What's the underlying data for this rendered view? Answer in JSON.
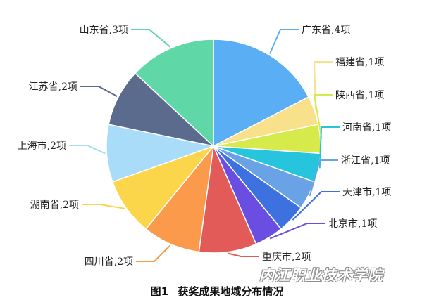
{
  "chart_data": {
    "type": "pie",
    "start_angle_deg": 90,
    "direction": "clockwise",
    "slices": [
      {
        "label": "广东省,4项",
        "value": 4,
        "color": "#5aaef3"
      },
      {
        "label": "福建省,1项",
        "value": 1,
        "color": "#f9e08a"
      },
      {
        "label": "陕西省,1项",
        "value": 1,
        "color": "#d7ea4b"
      },
      {
        "label": "河南省,1项",
        "value": 1,
        "color": "#26c4dd"
      },
      {
        "label": "浙江省,1项",
        "value": 1,
        "color": "#6aa2e6"
      },
      {
        "label": "天津市,1项",
        "value": 1,
        "color": "#3d71e0"
      },
      {
        "label": "北京市,1项",
        "value": 1,
        "color": "#6a4ee1"
      },
      {
        "label": "重庆市,2项",
        "value": 2,
        "color": "#e25b58"
      },
      {
        "label": "四川省,2项",
        "value": 2,
        "color": "#fb9a4b"
      },
      {
        "label": "湖南省,2项",
        "value": 2,
        "color": "#fbd54a"
      },
      {
        "label": "上海市,2项",
        "value": 2,
        "color": "#a8dcf8"
      },
      {
        "label": "江苏省,2项",
        "value": 2,
        "color": "#5a6b8e"
      },
      {
        "label": "山东省,3项",
        "value": 3,
        "color": "#5fd7a6"
      }
    ]
  },
  "caption": {
    "figure_no": "图1",
    "title": "获奖成果地域分布情况"
  },
  "watermark": "内江职业技术学院"
}
